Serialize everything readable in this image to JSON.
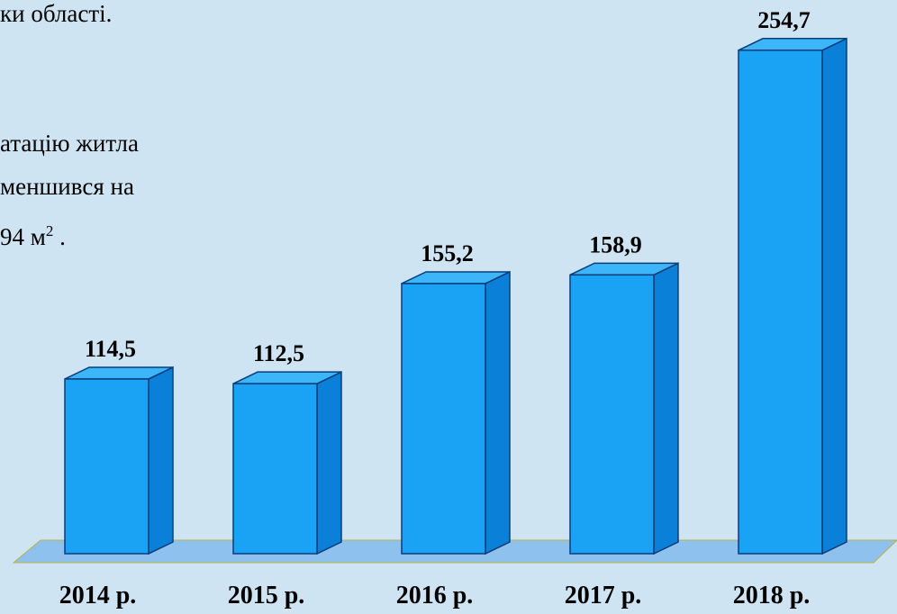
{
  "chart_data": {
    "type": "bar3d",
    "annotations": [
      "ки області.",
      "атацію житла",
      "меншився на"
    ],
    "area_note": {
      "text": "94 м",
      "sup": "2",
      "end": " ."
    },
    "categories": [
      "2014 р.",
      "2015 р.",
      "2016 р.",
      "2017 р.",
      "2018 р."
    ],
    "values": [
      114.5,
      112.5,
      155.2,
      158.9,
      254.7
    ],
    "value_labels": [
      "114,5",
      "112,5",
      "155,2",
      "158,9",
      "254,7"
    ],
    "color": "#1aa3f5",
    "ylim": [
      40,
      260
    ]
  }
}
